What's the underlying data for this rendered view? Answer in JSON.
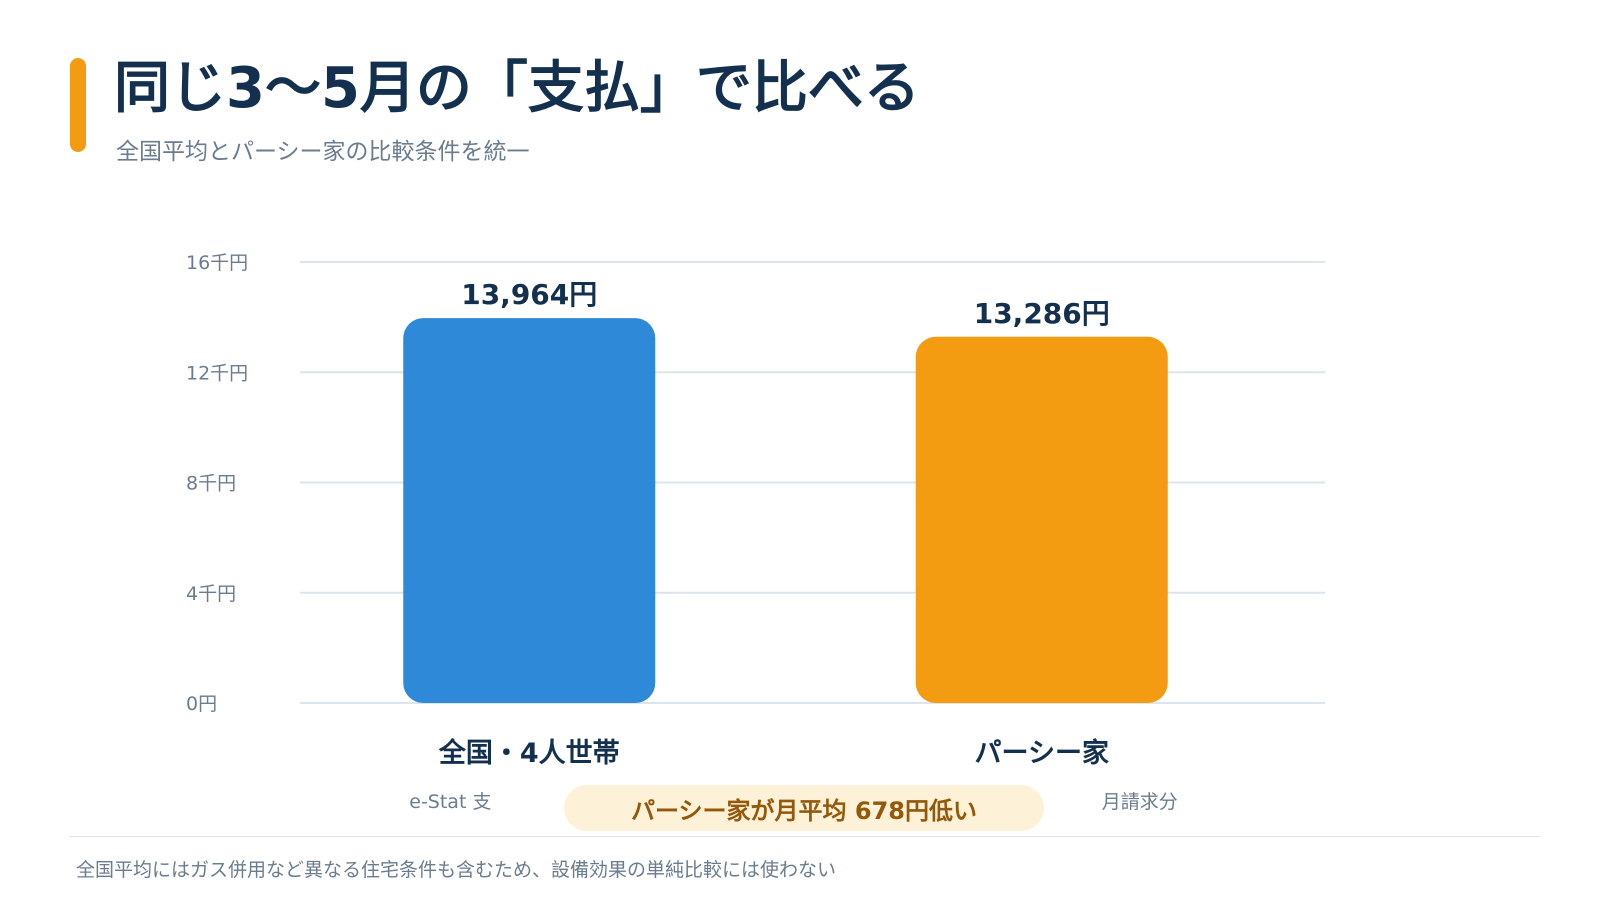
{
  "header": {
    "title": "同じ3〜5月の「支払」で比べる",
    "subtitle": "全国平均とパーシー家の比較条件を統一"
  },
  "colors": {
    "accent": "#f39c12",
    "grid": "#dce4ec"
  },
  "chart_data": {
    "type": "bar",
    "title": "",
    "xlabel": "",
    "ylabel": "",
    "ylim": [
      0,
      16000
    ],
    "y_ticks": [
      {
        "value": 0,
        "label": "0円"
      },
      {
        "value": 4000,
        "label": "4千円"
      },
      {
        "value": 8000,
        "label": "8千円"
      },
      {
        "value": 12000,
        "label": "12千円"
      },
      {
        "value": 16000,
        "label": "16千円"
      }
    ],
    "grid": true,
    "legend": "none",
    "bars": [
      {
        "category": "全国・4人世帯",
        "value": 13964,
        "value_label": "13,964円",
        "sublabel": "e-Stat 支",
        "color": "#2e8ad8"
      },
      {
        "category": "パーシー家",
        "value": 13286,
        "value_label": "13,286円",
        "sublabel": "月請求分",
        "color": "#f39c12"
      }
    ]
  },
  "callout": {
    "text": "パーシー家が月平均 678円低い"
  },
  "footnote": "全国平均にはガス併用など異なる住宅条件も含むため、設備効果の単純比較には使わない"
}
